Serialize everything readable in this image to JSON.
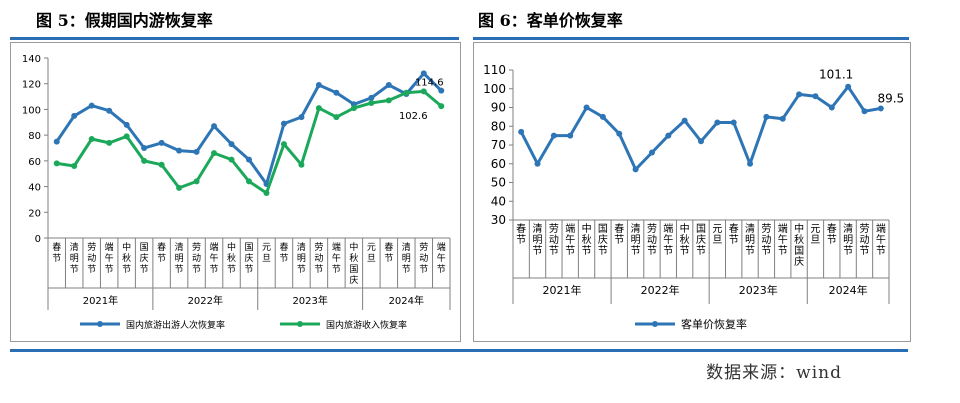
{
  "figure5": {
    "title": "图 5：假期国内游恢复率",
    "chart_data": {
      "type": "line",
      "categories": [
        "春节",
        "清明节",
        "劳动节",
        "端午节",
        "中秋节",
        "国庆节",
        "春节",
        "清明节",
        "劳动节",
        "端午节",
        "中秋节",
        "国庆节",
        "元旦",
        "春节",
        "清明节",
        "劳动节",
        "端午节",
        "中秋国庆",
        "元旦",
        "春节",
        "清明节",
        "劳动节",
        "端午节"
      ],
      "groups": [
        {
          "label": "2021年",
          "start": 0,
          "end": 5
        },
        {
          "label": "2022年",
          "start": 6,
          "end": 11
        },
        {
          "label": "2023年",
          "start": 12,
          "end": 17
        },
        {
          "label": "2024年",
          "start": 18,
          "end": 22
        }
      ],
      "series": [
        {
          "name": "国内旅游出游人次恢复率",
          "color": "#2e75b6",
          "values": [
            75,
            95,
            103,
            99,
            88,
            70,
            74,
            68,
            67,
            87,
            73,
            61,
            42,
            89,
            94,
            119,
            113,
            104,
            109,
            119,
            112,
            128,
            114.6
          ]
        },
        {
          "name": "国内旅游收入恢复率",
          "color": "#1ca85a",
          "values": [
            58,
            56,
            77,
            74,
            79,
            60,
            57,
            39,
            44,
            66,
            61,
            44,
            35,
            73,
            57,
            101,
            94,
            101,
            105,
            107,
            113,
            114,
            102.6
          ]
        }
      ],
      "annotations": [
        "114.6",
        "102.6"
      ],
      "ylim": [
        0,
        140
      ],
      "yticks": [
        "0",
        "20",
        "40",
        "60",
        "80",
        "100",
        "120",
        "140"
      ],
      "grid": false,
      "legend": "bottom"
    }
  },
  "figure6": {
    "title": "图 6：客单价恢复率",
    "chart_data": {
      "type": "line",
      "categories": [
        "春节",
        "清明节",
        "劳动节",
        "端午节",
        "中秋节",
        "国庆节",
        "春节",
        "清明节",
        "劳动节",
        "端午节",
        "中秋节",
        "国庆节",
        "元旦",
        "春节",
        "清明节",
        "劳动节",
        "端午节",
        "中秋国庆",
        "元旦",
        "春节",
        "清明节",
        "劳动节",
        "端午节"
      ],
      "groups": [
        {
          "label": "2021年",
          "start": 0,
          "end": 5
        },
        {
          "label": "2022年",
          "start": 6,
          "end": 11
        },
        {
          "label": "2023年",
          "start": 12,
          "end": 17
        },
        {
          "label": "2024年",
          "start": 18,
          "end": 22
        }
      ],
      "series": [
        {
          "name": "客单价恢复率",
          "color": "#2e75b6",
          "values": [
            77,
            60,
            75,
            75,
            90,
            85,
            76,
            57,
            66,
            75,
            83,
            72,
            82,
            82,
            60,
            85,
            84,
            97,
            96,
            90,
            101.1,
            88,
            89.5
          ]
        }
      ],
      "annotations": [
        "101.1",
        "89.5"
      ],
      "ylim": [
        30,
        110
      ],
      "yticks": [
        "30",
        "40",
        "50",
        "60",
        "70",
        "80",
        "90",
        "100",
        "110"
      ],
      "grid": false,
      "legend": "bottom"
    }
  },
  "source": "数据来源：wind"
}
